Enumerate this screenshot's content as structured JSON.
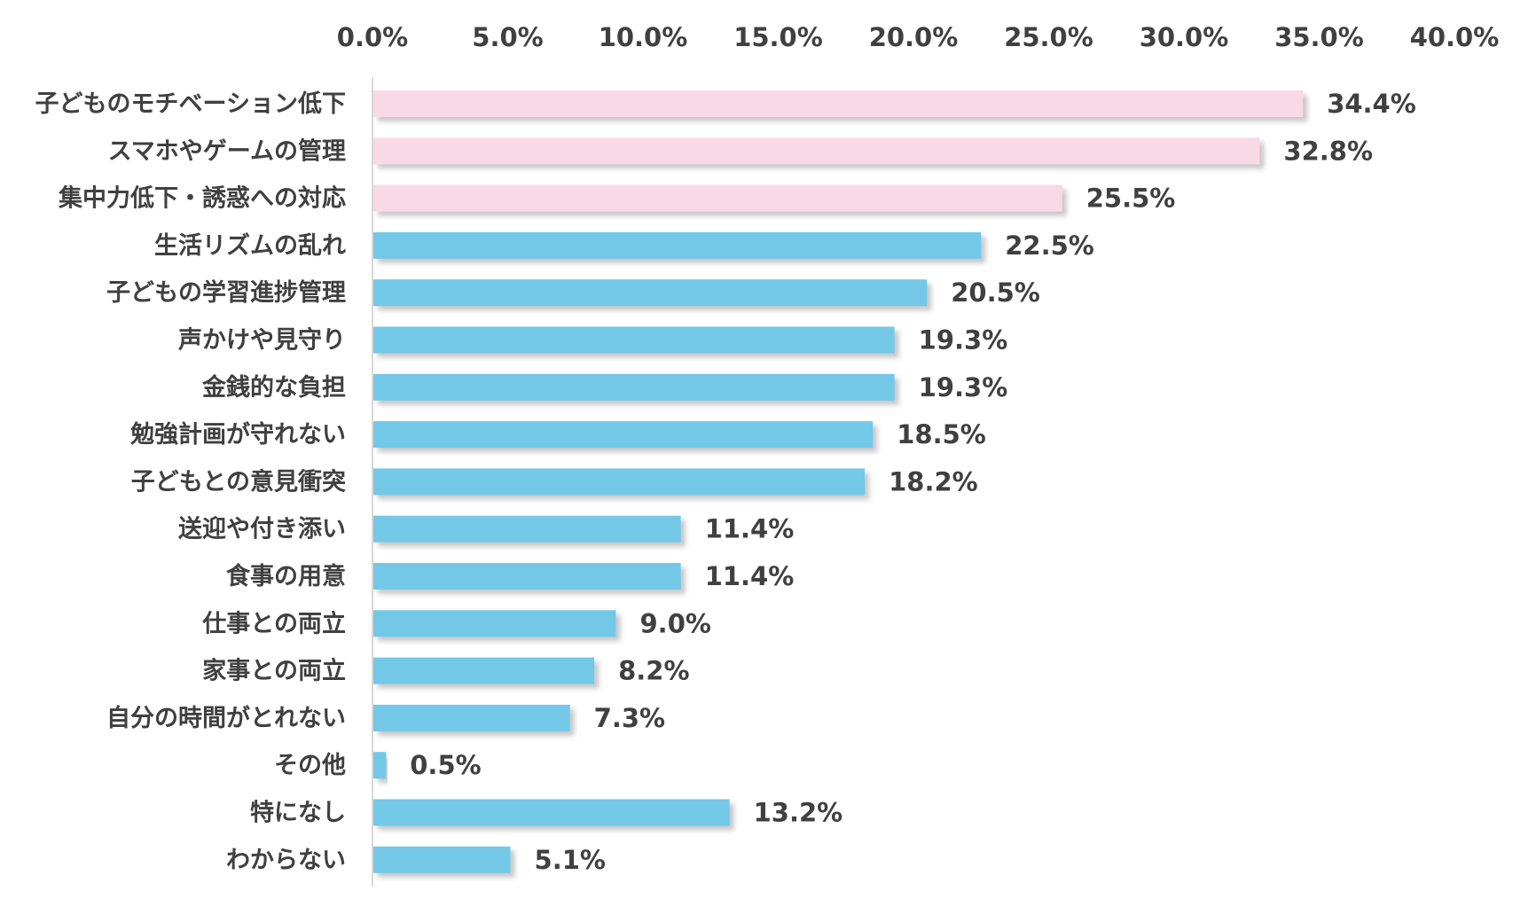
{
  "chart_data": {
    "type": "bar",
    "orientation": "horizontal",
    "title": "",
    "xlabel": "",
    "ylabel": "",
    "xlim": [
      0,
      40
    ],
    "x_ticks": [
      "0.0%",
      "5.0%",
      "10.0%",
      "15.0%",
      "20.0%",
      "25.0%",
      "30.0%",
      "35.0%",
      "40.0%"
    ],
    "x_tick_values": [
      0,
      5,
      10,
      15,
      20,
      25,
      30,
      35,
      40
    ],
    "axis_position": "top",
    "grid": false,
    "legend": "none",
    "categories": [
      "子どものモチベーション低下",
      "スマホやゲームの管理",
      "集中力低下・誘惑への対応",
      "生活リズムの乱れ",
      "子どもの学習進捗管理",
      "声かけや見守り",
      "金銭的な負担",
      "勉強計画が守れない",
      "子どもとの意見衝突",
      "送迎や付き添い",
      "食事の用意",
      "仕事との両立",
      "家事との両立",
      "自分の時間がとれない",
      "その他",
      "特になし",
      "わからない"
    ],
    "values": [
      34.4,
      32.8,
      25.5,
      22.5,
      20.5,
      19.3,
      19.3,
      18.5,
      18.2,
      11.4,
      11.4,
      9.0,
      8.2,
      7.3,
      0.5,
      13.2,
      5.1
    ],
    "value_labels": [
      "34.4%",
      "32.8%",
      "25.5%",
      "22.5%",
      "20.5%",
      "19.3%",
      "19.3%",
      "18.5%",
      "18.2%",
      "11.4%",
      "11.4%",
      "9.0%",
      "8.2%",
      "7.3%",
      "0.5%",
      "13.2%",
      "5.1%"
    ],
    "highlight_count": 3,
    "colors": {
      "highlight": "#f9d9e6",
      "normal": "#73c8e8",
      "shadow": "#c8c8c8",
      "axis": "#d9d9d9",
      "text": "#404040"
    }
  }
}
